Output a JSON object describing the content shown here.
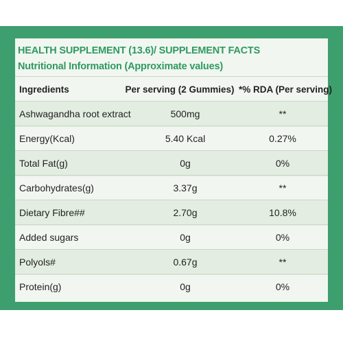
{
  "title_line1": "HEALTH SUPPLEMENT (13.6)/ SUPPLEMENT FACTS",
  "title_line2": "Nutritional Information (Approximate values)",
  "table": {
    "headers": [
      "Ingredients",
      "Per serving (2 Gummies)",
      "*% RDA (Per serving)"
    ],
    "rows": [
      {
        "ingredient": "Ashwagandha root extract",
        "per_serving": "500mg",
        "rda": "**"
      },
      {
        "ingredient": "Energy(Kcal)",
        "per_serving": "5.40 Kcal",
        "rda": "0.27%"
      },
      {
        "ingredient": "Total Fat(g)",
        "per_serving": "0g",
        "rda": "0%"
      },
      {
        "ingredient": "Carbohydrates(g)",
        "per_serving": "3.37g",
        "rda": "**"
      },
      {
        "ingredient": "Dietary Fibre##",
        "per_serving": "2.70g",
        "rda": "10.8%"
      },
      {
        "ingredient": "Added sugars",
        "per_serving": "0g",
        "rda": "0%"
      },
      {
        "ingredient": "Polyols#",
        "per_serving": "0.67g",
        "rda": "**"
      },
      {
        "ingredient": "Protein(g)",
        "per_serving": "0g",
        "rda": "0%"
      }
    ]
  },
  "colors": {
    "frame": "#3d9f6d",
    "heading": "#2f9a62",
    "panel": "#f1f6f0"
  }
}
